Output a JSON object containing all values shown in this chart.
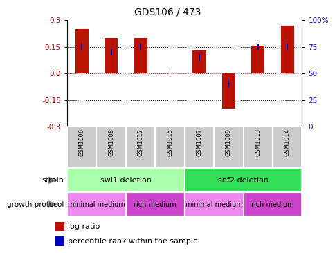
{
  "title": "GDS106 / 473",
  "samples": [
    "GSM1006",
    "GSM1008",
    "GSM1012",
    "GSM1015",
    "GSM1007",
    "GSM1009",
    "GSM1013",
    "GSM1014"
  ],
  "log_ratios": [
    0.25,
    0.2,
    0.2,
    0.0,
    0.13,
    -0.2,
    0.155,
    0.27
  ],
  "percentile_ranks": [
    75,
    70,
    75,
    50,
    65,
    40,
    75,
    75
  ],
  "ylim": [
    -0.3,
    0.3
  ],
  "yticks_left": [
    -0.3,
    -0.15,
    0.0,
    0.15,
    0.3
  ],
  "yticks_right": [
    0,
    25,
    50,
    75,
    100
  ],
  "dotted_lines_black": [
    -0.15,
    0.15
  ],
  "dotted_lines_red": [
    0.0
  ],
  "bar_width": 0.45,
  "bar_color": "#BB1100",
  "percentile_color": "#0000BB",
  "strain_groups": [
    {
      "label": "swi1 deletion",
      "start": 0,
      "end": 4,
      "color": "#AAFFAA"
    },
    {
      "label": "snf2 deletion",
      "start": 4,
      "end": 8,
      "color": "#33DD55"
    }
  ],
  "growth_protocol_groups": [
    {
      "label": "minimal medium",
      "start": 0,
      "end": 2,
      "color": "#EE88EE"
    },
    {
      "label": "rich medium",
      "start": 2,
      "end": 4,
      "color": "#CC44CC"
    },
    {
      "label": "minimal medium",
      "start": 4,
      "end": 6,
      "color": "#EE88EE"
    },
    {
      "label": "rich medium",
      "start": 6,
      "end": 8,
      "color": "#CC44CC"
    }
  ],
  "legend_items": [
    {
      "label": "log ratio",
      "color": "#BB1100"
    },
    {
      "label": "percentile rank within the sample",
      "color": "#0000BB"
    }
  ],
  "ylabel_left_color": "#CC0000",
  "ylabel_right_color": "#0000CC",
  "sample_cell_color": "#CCCCCC",
  "background_color": "#FFFFFF"
}
